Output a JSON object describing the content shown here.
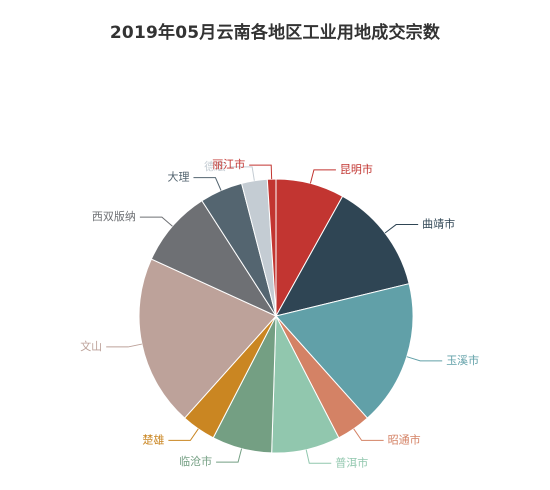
{
  "chart_data": {
    "type": "pie",
    "title": "2019年05月云南各地区工业用地成交宗数",
    "slices": [
      {
        "label": "昆明市",
        "value": 8,
        "color": "#c23531"
      },
      {
        "label": "曲靖市",
        "value": 13,
        "color": "#2f4554"
      },
      {
        "label": "玉溪市",
        "value": 17,
        "color": "#61a0a8"
      },
      {
        "label": "昭通市",
        "value": 4,
        "color": "#d48265"
      },
      {
        "label": "普洱市",
        "value": 8,
        "color": "#91c7ae"
      },
      {
        "label": "临沧市",
        "value": 7,
        "color": "#749f83"
      },
      {
        "label": "楚雄",
        "value": 4,
        "color": "#ca8622"
      },
      {
        "label": "文山",
        "value": 20,
        "color": "#bda29a"
      },
      {
        "label": "西双版纳",
        "value": 9,
        "color": "#6e7074"
      },
      {
        "label": "大理",
        "value": 5,
        "color": "#546570"
      },
      {
        "label": "德宏",
        "value": 3,
        "color": "#c4ccd3"
      },
      {
        "label": "丽江市",
        "value": 1,
        "color": "#c23531"
      }
    ],
    "legend": "none"
  }
}
